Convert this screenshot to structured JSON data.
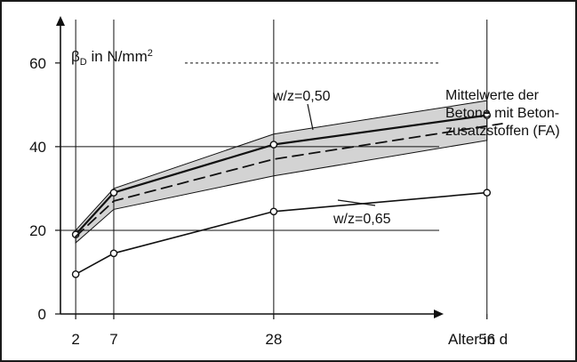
{
  "chart_data": {
    "type": "line",
    "y_axis": {
      "label_symbol": "β",
      "label_subscript": "D",
      "label_suffix": " in N/mm",
      "label_superscript": "2",
      "ticks": [
        0,
        20,
        40,
        60
      ],
      "ylim": [
        0,
        64
      ]
    },
    "x_axis": {
      "label": "Alter in d",
      "ticks": [
        2,
        7,
        28,
        56
      ],
      "xlim": [
        0,
        60
      ]
    },
    "grid": {
      "vertical": [
        2,
        7,
        28,
        56
      ],
      "horizontal": [
        20,
        40
      ],
      "dashed_horizontal": 60
    },
    "series": [
      {
        "name": "w/z=0,50",
        "x": [
          2,
          7,
          28,
          56
        ],
        "y": [
          19,
          29,
          40.5,
          47.5
        ],
        "line_style": "solid",
        "markers": true
      },
      {
        "name": "Mittelwerte der Betone mit Betonzusatzstoffen (FA)",
        "x": [
          2,
          7,
          28,
          58
        ],
        "y": [
          18.5,
          27,
          37,
          45.5
        ],
        "line_style": "dashed",
        "markers": false
      },
      {
        "name": "w/z=0,65",
        "x": [
          2,
          7,
          28,
          56
        ],
        "y": [
          9.5,
          14.5,
          24.5,
          29
        ],
        "line_style": "solid",
        "markers": true
      }
    ],
    "band": {
      "x": [
        2,
        7,
        28,
        56
      ],
      "upper": [
        20,
        30,
        43,
        51
      ],
      "lower": [
        17,
        25,
        33,
        41.5
      ],
      "color": "#d3d3d3"
    },
    "annotations": [
      {
        "text": "w/z=0,50",
        "target_series": 0
      },
      {
        "text": "w/z=0,65",
        "target_series": 2
      },
      {
        "lines": [
          "Mittelwerte der",
          "Betone mit Beton-",
          "zusatzstoffen (FA)"
        ],
        "target_series": 1
      }
    ],
    "colors": {
      "line": "#111111",
      "grid": "#111111",
      "band": "#d3d3d3"
    }
  }
}
